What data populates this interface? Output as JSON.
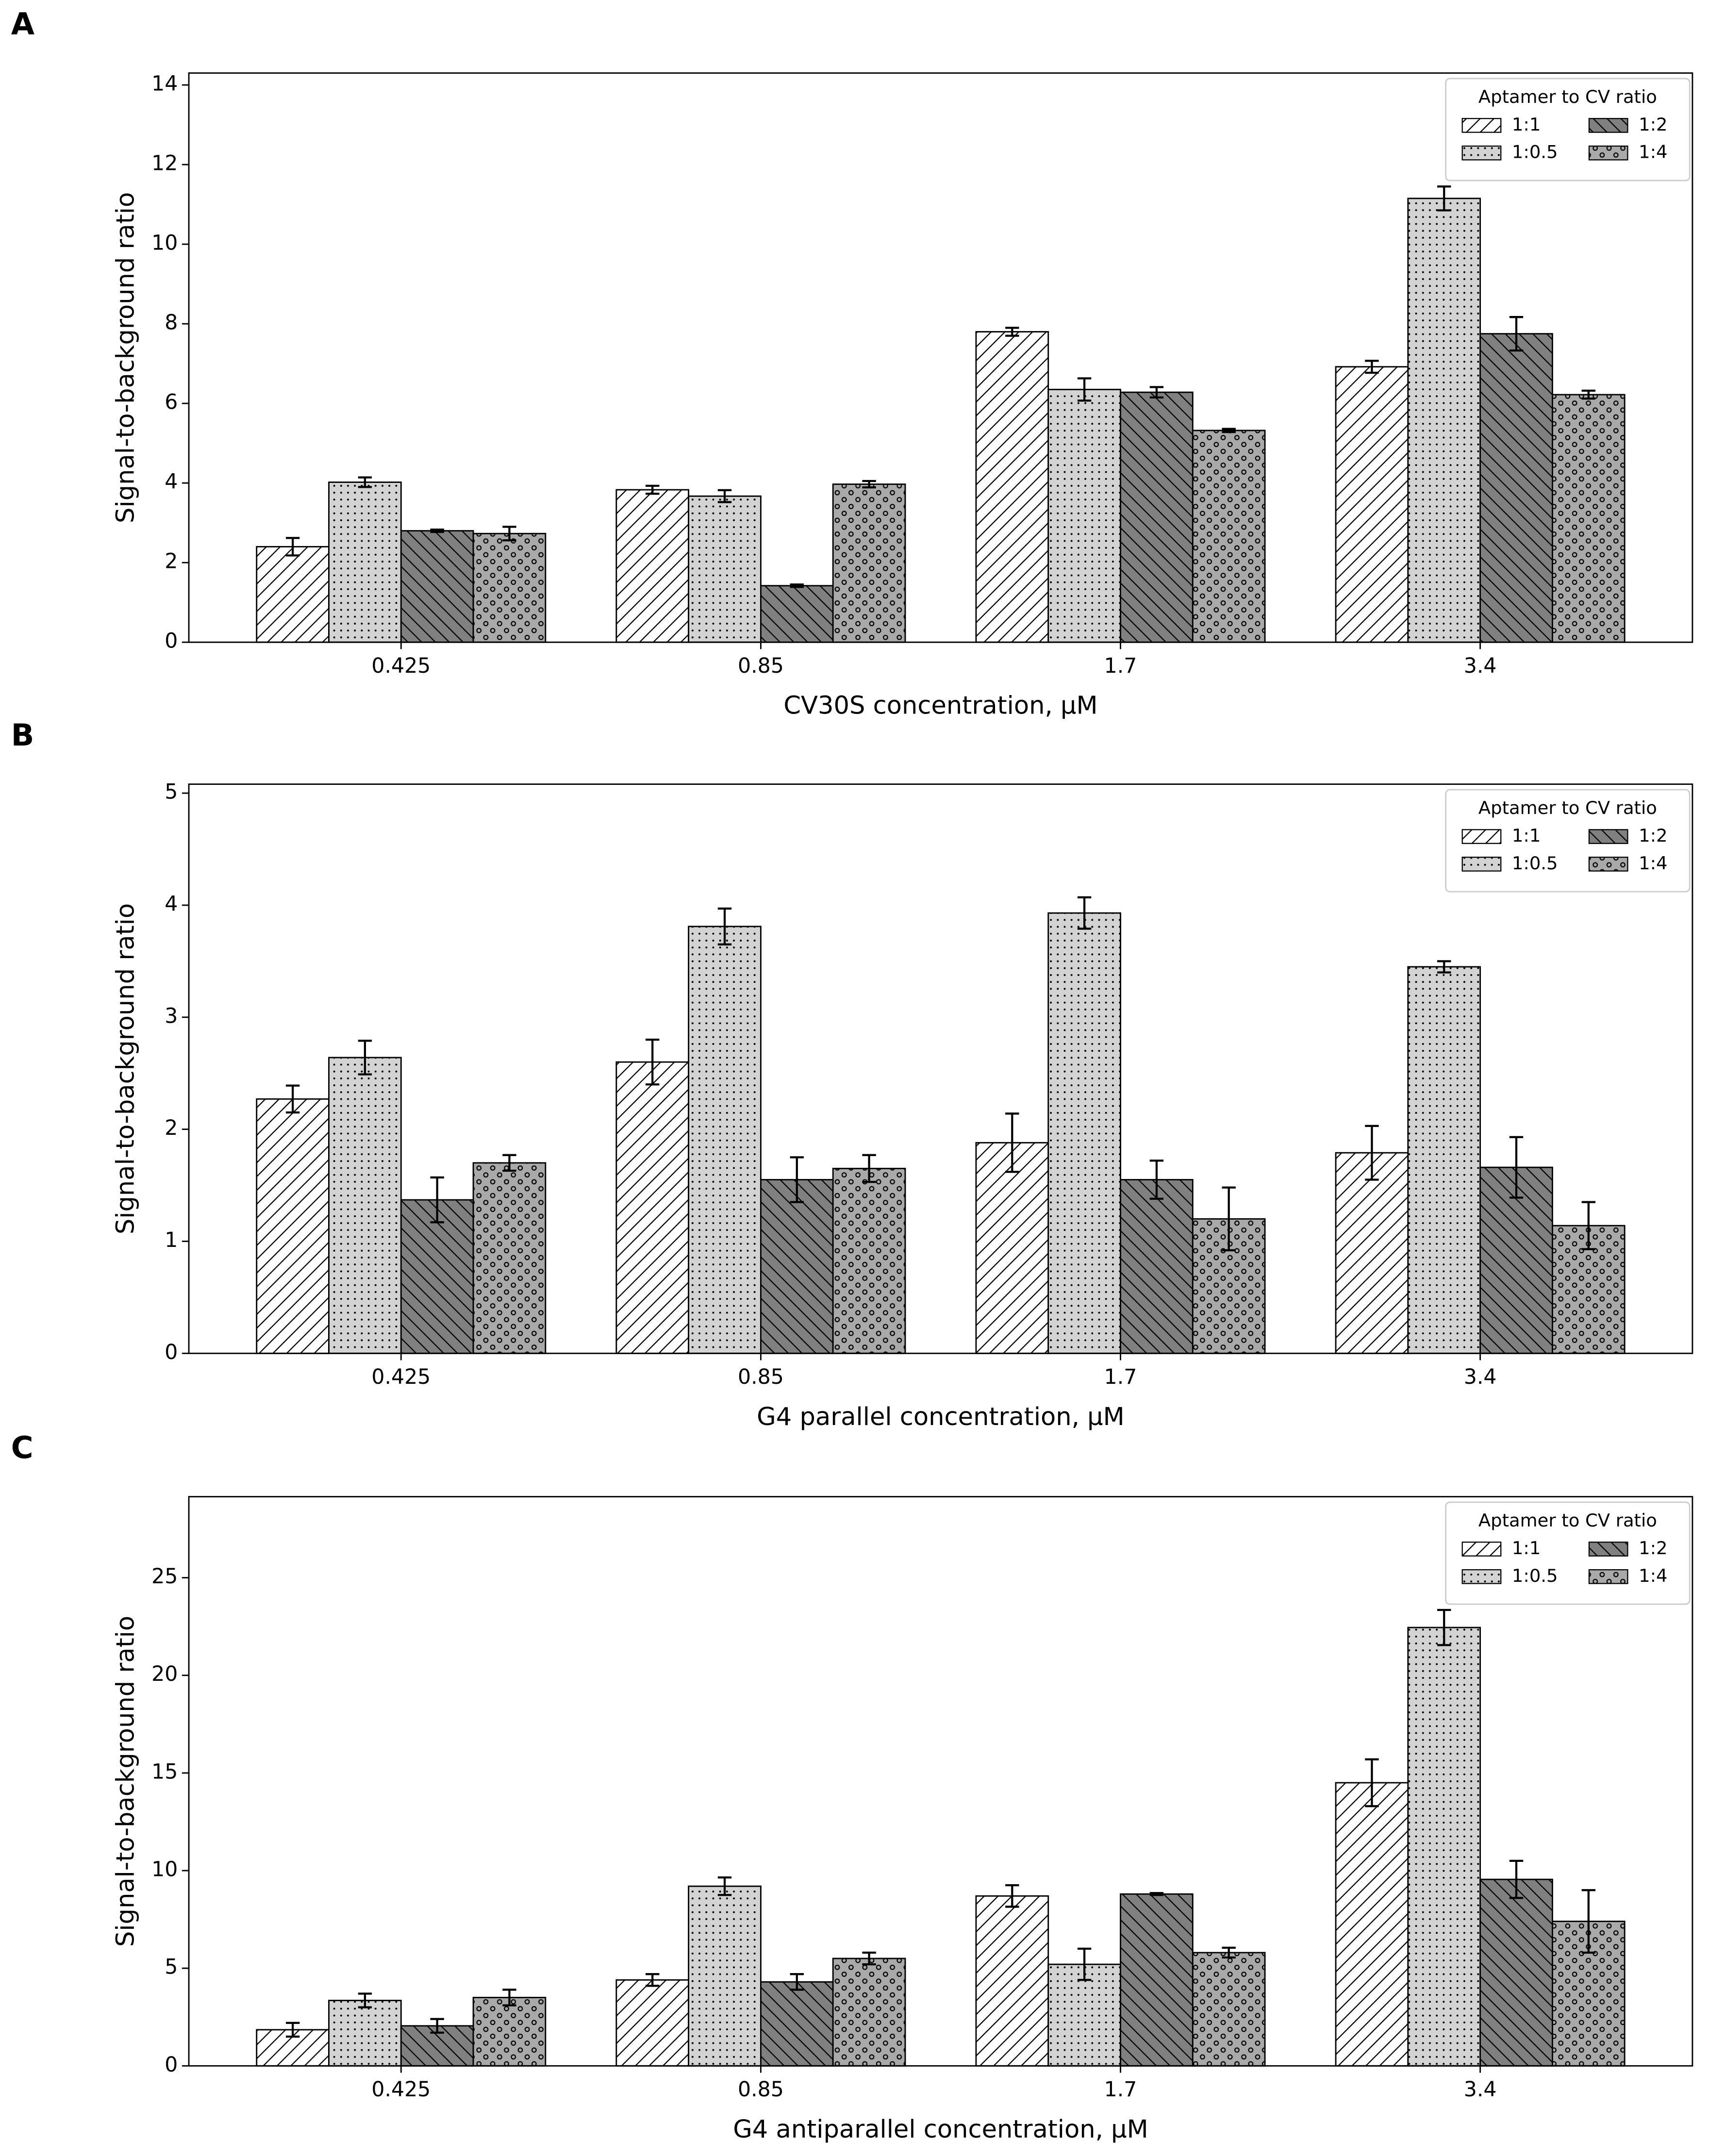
{
  "chart_data": [
    {
      "type": "bar",
      "panel": "A",
      "x_label": "CV30S concentration, µM",
      "y_label": "Signal-to-background ratio",
      "categories": [
        "0.425",
        "0.85",
        "1.7",
        "3.4"
      ],
      "ylim": [
        0,
        14.3
      ],
      "yticks": [
        0,
        2,
        4,
        6,
        8,
        10,
        12,
        14
      ],
      "legend_title": "Aptamer to CV ratio",
      "legend": "upper right",
      "series": [
        {
          "name": "1:1",
          "color": "#ffffff",
          "hatch": "/",
          "values": [
            2.4,
            3.83,
            7.8,
            6.92
          ],
          "errors": [
            0.22,
            0.1,
            0.1,
            0.15
          ]
        },
        {
          "name": "1:0.5",
          "color": "#d3d3d3",
          "hatch": ".",
          "values": [
            4.02,
            3.67,
            6.35,
            11.15
          ],
          "errors": [
            0.12,
            0.15,
            0.28,
            0.3
          ]
        },
        {
          "name": "1:2",
          "color": "#808080",
          "hatch": "\\",
          "values": [
            2.8,
            1.42,
            6.28,
            7.75
          ],
          "errors": [
            0.03,
            0.03,
            0.13,
            0.42
          ]
        },
        {
          "name": "1:4",
          "color": "#a9a9a9",
          "hatch": "o",
          "values": [
            2.73,
            3.97,
            5.32,
            6.22
          ],
          "errors": [
            0.17,
            0.08,
            0.04,
            0.1
          ]
        }
      ]
    },
    {
      "type": "bar",
      "panel": "B",
      "x_label": "G4 parallel concentration, µM",
      "y_label": "Signal-to-background ratio",
      "categories": [
        "0.425",
        "0.85",
        "1.7",
        "3.4"
      ],
      "ylim": [
        0,
        5.08
      ],
      "yticks": [
        0,
        1,
        2,
        3,
        4,
        5
      ],
      "legend_title": "Aptamer to CV ratio",
      "legend": "upper right",
      "series": [
        {
          "name": "1:1",
          "color": "#ffffff",
          "hatch": "/",
          "values": [
            2.27,
            2.6,
            1.88,
            1.79
          ],
          "errors": [
            0.12,
            0.2,
            0.26,
            0.24
          ]
        },
        {
          "name": "1:0.5",
          "color": "#d3d3d3",
          "hatch": ".",
          "values": [
            2.64,
            3.81,
            3.93,
            3.45
          ],
          "errors": [
            0.15,
            0.16,
            0.14,
            0.05
          ]
        },
        {
          "name": "1:2",
          "color": "#808080",
          "hatch": "\\",
          "values": [
            1.37,
            1.55,
            1.55,
            1.66
          ],
          "errors": [
            0.2,
            0.2,
            0.17,
            0.27
          ]
        },
        {
          "name": "1:4",
          "color": "#a9a9a9",
          "hatch": "o",
          "values": [
            1.7,
            1.65,
            1.2,
            1.14
          ],
          "errors": [
            0.07,
            0.12,
            0.28,
            0.21
          ]
        }
      ]
    },
    {
      "type": "bar",
      "panel": "C",
      "x_label": "G4 antiparallel concentration, µM",
      "y_label": "Signal-to-background ratio",
      "categories": [
        "0.425",
        "0.85",
        "1.7",
        "3.4"
      ],
      "ylim": [
        0,
        29.15
      ],
      "yticks": [
        0,
        5,
        10,
        15,
        20,
        25
      ],
      "legend_title": "Aptamer to CV ratio",
      "legend": "upper right",
      "series": [
        {
          "name": "1:1",
          "color": "#ffffff",
          "hatch": "/",
          "values": [
            1.85,
            4.4,
            8.7,
            14.5
          ],
          "errors": [
            0.35,
            0.3,
            0.55,
            1.2
          ]
        },
        {
          "name": "1:0.5",
          "color": "#d3d3d3",
          "hatch": ".",
          "values": [
            3.35,
            9.2,
            5.2,
            22.45
          ],
          "errors": [
            0.35,
            0.45,
            0.8,
            0.9
          ]
        },
        {
          "name": "1:2",
          "color": "#808080",
          "hatch": "\\",
          "values": [
            2.05,
            4.3,
            8.8,
            9.55
          ],
          "errors": [
            0.35,
            0.4,
            0.05,
            0.95
          ]
        },
        {
          "name": "1:4",
          "color": "#a9a9a9",
          "hatch": "o",
          "values": [
            3.5,
            5.5,
            5.8,
            7.4
          ],
          "errors": [
            0.4,
            0.3,
            0.25,
            1.6
          ]
        }
      ]
    }
  ]
}
